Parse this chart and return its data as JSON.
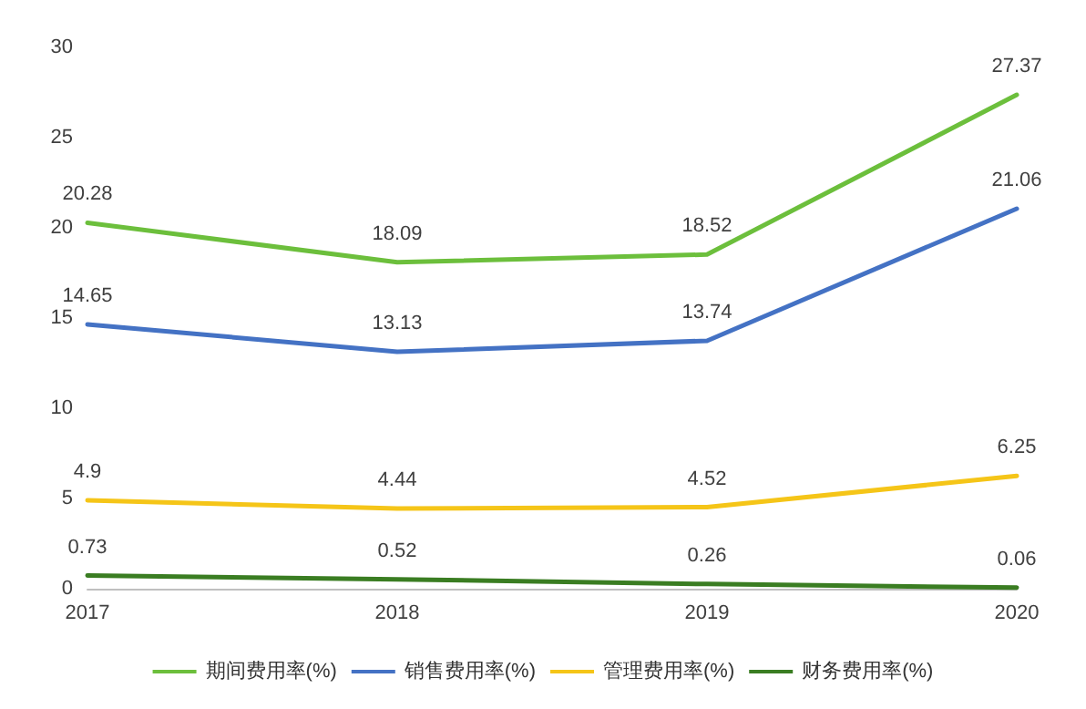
{
  "chart_data": {
    "type": "line",
    "categories": [
      "2017",
      "2018",
      "2019",
      "2020"
    ],
    "series": [
      {
        "name": "期间费用率(%)",
        "color": "#6cbf3c",
        "values": [
          20.28,
          18.09,
          18.52,
          27.37
        ]
      },
      {
        "name": "销售费用率(%)",
        "color": "#4472c4",
        "values": [
          14.65,
          13.13,
          13.74,
          21.06
        ]
      },
      {
        "name": "管理费用率(%)",
        "color": "#f5c518",
        "values": [
          4.9,
          4.44,
          4.52,
          6.25
        ]
      },
      {
        "name": "财务费用率(%)",
        "color": "#3a7d22",
        "values": [
          0.73,
          0.52,
          0.26,
          0.06
        ]
      }
    ],
    "ylim": [
      0,
      30
    ],
    "yticks": [
      0,
      5,
      10,
      15,
      20,
      25,
      30
    ],
    "grid": false,
    "legend": "bottom",
    "data_labels": true,
    "marker": "none",
    "line_style": "solid"
  }
}
